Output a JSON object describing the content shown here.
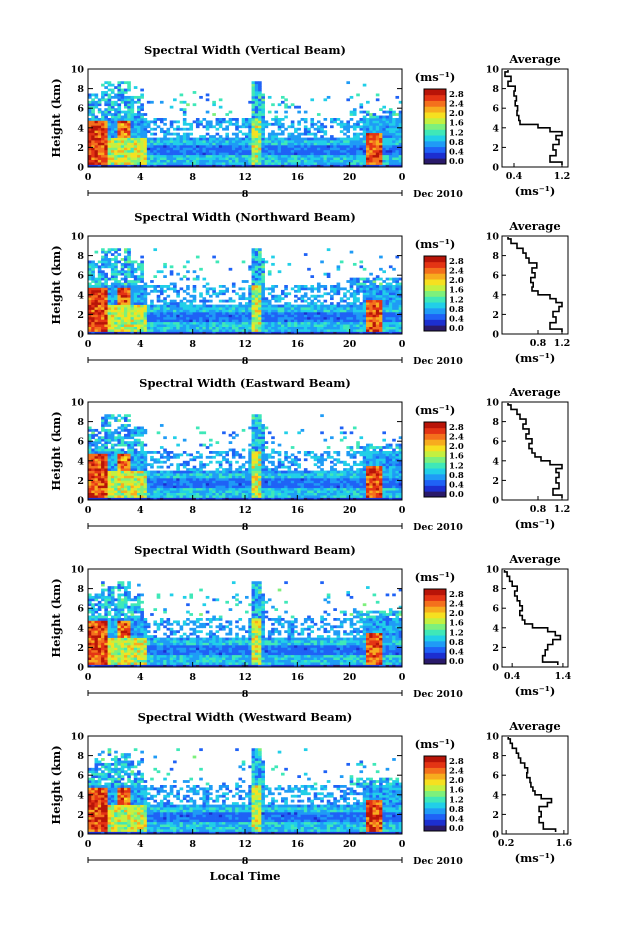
{
  "figure": {
    "y_axis_label": "Height (km)",
    "colorbar_unit": "(ms⁻¹)",
    "colorbar_ticks": [
      "2.8",
      "2.4",
      "2.0",
      "1.6",
      "1.2",
      "0.8",
      "0.4",
      "0.0"
    ],
    "colorbar_colors": [
      "#2a1a6a",
      "#1c2fd0",
      "#1f62f6",
      "#1f9bf6",
      "#21cfe8",
      "#3fe8b8",
      "#7df07c",
      "#c4f040",
      "#f6e020",
      "#f7ac1e",
      "#f4701c",
      "#e43414",
      "#b81408"
    ],
    "time_ticks": [
      "0",
      "4",
      "8",
      "12",
      "16",
      "20",
      "0"
    ],
    "day_labels": [
      "8",
      "Dec 2010"
    ],
    "x_axis_label": "Local Time",
    "average_title": "Average",
    "average_xlabel": "(ms⁻¹)",
    "height_ticks": [
      "10",
      "8",
      "6",
      "4",
      "2",
      "0"
    ],
    "avg_height_ticks": [
      "10",
      "8",
      "6",
      "4",
      "2",
      "0"
    ]
  },
  "chart_data": [
    {
      "type": "heatmap",
      "title": "Spectral Width (Vertical Beam)",
      "ylabel": "Height (km)",
      "xlabel": "Local Time",
      "xlim": [
        0,
        24
      ],
      "ylim": [
        0,
        10
      ],
      "colorbar": {
        "label": "(ms⁻¹)",
        "range": [
          0.0,
          3.0
        ]
      },
      "average_profile": {
        "title": "Average",
        "xlabel": "(ms⁻¹)",
        "xlim": [
          0.2,
          1.3
        ],
        "xticks": [
          "0.4",
          "1.2"
        ],
        "ylim": [
          0,
          10
        ],
        "height_km": [
          0.2,
          0.8,
          1.5,
          2.0,
          2.6,
          3.0,
          3.4,
          3.8,
          4.2,
          4.5,
          5.0,
          5.5,
          6.0,
          6.5,
          7.0,
          7.5,
          8.0,
          8.5,
          9.0,
          9.5,
          9.9
        ],
        "width_ms": [
          1.2,
          1.0,
          1.1,
          1.05,
          1.15,
          1.1,
          1.2,
          1.0,
          0.8,
          0.5,
          0.48,
          0.45,
          0.46,
          0.42,
          0.44,
          0.4,
          0.42,
          0.3,
          0.35,
          0.25,
          0.3
        ]
      }
    },
    {
      "type": "heatmap",
      "title": "Spectral Width (Northward Beam)",
      "ylabel": "Height (km)",
      "xlabel": "Local Time",
      "xlim": [
        0,
        24
      ],
      "ylim": [
        0,
        10
      ],
      "colorbar": {
        "label": "(ms⁻¹)",
        "range": [
          0.0,
          3.0
        ]
      },
      "average_profile": {
        "title": "Average",
        "xlabel": "(ms⁻¹)",
        "xlim": [
          0.2,
          1.3
        ],
        "xticks": [
          "0.8",
          "1.2"
        ],
        "ylim": [
          0,
          10
        ],
        "height_km": [
          0.2,
          0.8,
          1.5,
          2.0,
          2.6,
          3.0,
          3.4,
          3.8,
          4.2,
          4.6,
          5.0,
          5.5,
          6.0,
          6.5,
          7.0,
          7.5,
          8.0,
          8.5,
          9.0,
          9.5,
          9.9
        ],
        "width_ms": [
          1.2,
          1.0,
          1.1,
          1.05,
          1.15,
          1.2,
          1.1,
          1.0,
          0.8,
          0.7,
          0.72,
          0.68,
          0.75,
          0.7,
          0.78,
          0.65,
          0.6,
          0.55,
          0.45,
          0.35,
          0.3
        ]
      }
    },
    {
      "type": "heatmap",
      "title": "Spectral Width (Eastward Beam)",
      "ylabel": "Height (km)",
      "xlabel": "Local Time",
      "xlim": [
        0,
        24
      ],
      "ylim": [
        0,
        10
      ],
      "colorbar": {
        "label": "(ms⁻¹)",
        "range": [
          0.0,
          3.0
        ]
      },
      "average_profile": {
        "title": "Average",
        "xlabel": "(ms⁻¹)",
        "xlim": [
          0.2,
          1.3
        ],
        "xticks": [
          "0.8",
          "1.2"
        ],
        "ylim": [
          0,
          10
        ],
        "height_km": [
          0.2,
          0.8,
          1.5,
          2.0,
          2.6,
          3.0,
          3.4,
          3.8,
          4.2,
          4.6,
          5.0,
          5.5,
          6.0,
          6.5,
          7.0,
          7.5,
          8.0,
          8.5,
          9.0,
          9.5,
          9.9
        ],
        "width_ms": [
          1.2,
          1.05,
          1.15,
          1.1,
          1.15,
          1.1,
          1.2,
          1.0,
          0.85,
          0.75,
          0.7,
          0.65,
          0.7,
          0.6,
          0.65,
          0.55,
          0.6,
          0.5,
          0.45,
          0.35,
          0.3
        ]
      }
    },
    {
      "type": "heatmap",
      "title": "Spectral Width (Southward Beam)",
      "ylabel": "Height (km)",
      "xlabel": "Local Time",
      "xlim": [
        0,
        24
      ],
      "ylim": [
        0,
        10
      ],
      "colorbar": {
        "label": "(ms⁻¹)",
        "range": [
          0.0,
          3.0
        ]
      },
      "average_profile": {
        "title": "Average",
        "xlabel": "(ms⁻¹)",
        "xlim": [
          0.2,
          1.5
        ],
        "xticks": [
          "0.4",
          "1.4"
        ],
        "ylim": [
          0,
          10
        ],
        "height_km": [
          0.2,
          0.8,
          1.5,
          2.0,
          2.6,
          3.0,
          3.4,
          3.8,
          4.2,
          4.6,
          5.0,
          5.5,
          6.0,
          6.5,
          7.0,
          7.5,
          8.0,
          8.5,
          9.0,
          9.5,
          9.9
        ],
        "width_ms": [
          1.3,
          1.0,
          1.05,
          1.1,
          1.2,
          1.35,
          1.25,
          1.1,
          0.8,
          0.65,
          0.6,
          0.55,
          0.6,
          0.55,
          0.5,
          0.45,
          0.5,
          0.4,
          0.35,
          0.3,
          0.25
        ]
      }
    },
    {
      "type": "heatmap",
      "title": "Spectral Width (Westward Beam)",
      "ylabel": "Height (km)",
      "xlabel": "Local Time",
      "xlim": [
        0,
        24
      ],
      "ylim": [
        0,
        10
      ],
      "colorbar": {
        "label": "(ms⁻¹)",
        "range": [
          0.0,
          3.0
        ]
      },
      "average_profile": {
        "title": "Average",
        "xlabel": "(ms⁻¹)",
        "xlim": [
          0.1,
          1.7
        ],
        "xticks": [
          "0.2",
          "1.6"
        ],
        "ylim": [
          0,
          10
        ],
        "height_km": [
          0.2,
          0.8,
          1.5,
          2.0,
          2.6,
          3.0,
          3.4,
          3.8,
          4.2,
          4.6,
          5.0,
          5.5,
          6.0,
          6.5,
          7.0,
          7.5,
          8.0,
          8.5,
          9.0,
          9.5,
          9.9
        ],
        "width_ms": [
          1.4,
          1.1,
          1.0,
          1.05,
          1.0,
          1.2,
          1.3,
          1.05,
          0.9,
          0.85,
          0.8,
          0.78,
          0.7,
          0.72,
          0.65,
          0.55,
          0.5,
          0.45,
          0.35,
          0.3,
          0.25
        ]
      }
    }
  ]
}
